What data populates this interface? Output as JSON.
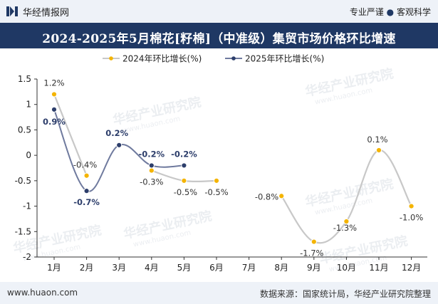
{
  "header": {
    "brand": "华经情报网",
    "tagline_left": "专业严谨",
    "tagline_sep": "●",
    "tagline_right": "客观科学"
  },
  "title": "2024-2025年5月棉花[籽棉]（中准级）集贸市场价格环比增速",
  "footer": {
    "site": "www.huaon.com",
    "source": "数据来源：国家统计局，华经产业研究院整理"
  },
  "colors": {
    "series_2024": "#f4b400",
    "series_2025": "#2d3e6b",
    "line_2024": "#c8c8c8",
    "line_2025": "#6f7a9e",
    "title_bg": "#1f3864"
  },
  "chart_data": {
    "type": "line",
    "title": "",
    "categories": [
      "1月",
      "2月",
      "3月",
      "4月",
      "5月",
      "6月",
      "7月",
      "8月",
      "9月",
      "10月",
      "11月",
      "12月"
    ],
    "series": [
      {
        "name": "2024年环比增长(%)",
        "values": [
          1.2,
          -0.4,
          null,
          -0.3,
          -0.5,
          -0.5,
          null,
          -0.8,
          -1.7,
          -1.3,
          0.1,
          -1.0
        ],
        "labels": [
          "1.2%",
          "-0.4%",
          "",
          "-0.3%",
          "-0.5%",
          "-0.5%",
          "",
          "-0.8%",
          "-1.7%",
          "-1.3%",
          "0.1%",
          "-1.0%"
        ]
      },
      {
        "name": "2025年环比增长(%)",
        "values": [
          0.9,
          -0.7,
          0.2,
          -0.2,
          -0.2,
          null,
          null,
          null,
          null,
          null,
          null,
          null
        ],
        "labels": [
          "0.9%",
          "-0.7%",
          "0.2%",
          "-0.2%",
          "-0.2%",
          "",
          "",
          "",
          "",
          "",
          "",
          ""
        ]
      }
    ],
    "ylim": [
      -2,
      1.5
    ],
    "yticks": [
      "1.5",
      "1",
      "0.5",
      "0",
      "-0.5",
      "-1",
      "-1.5",
      "-2"
    ],
    "ytick_values": [
      1.5,
      1,
      0.5,
      0,
      -0.5,
      -1,
      -1.5,
      -2
    ],
    "grid": false,
    "legend": "top-left"
  },
  "watermarks": [
    "华经产业研究院",
    "www.huaon.com"
  ]
}
